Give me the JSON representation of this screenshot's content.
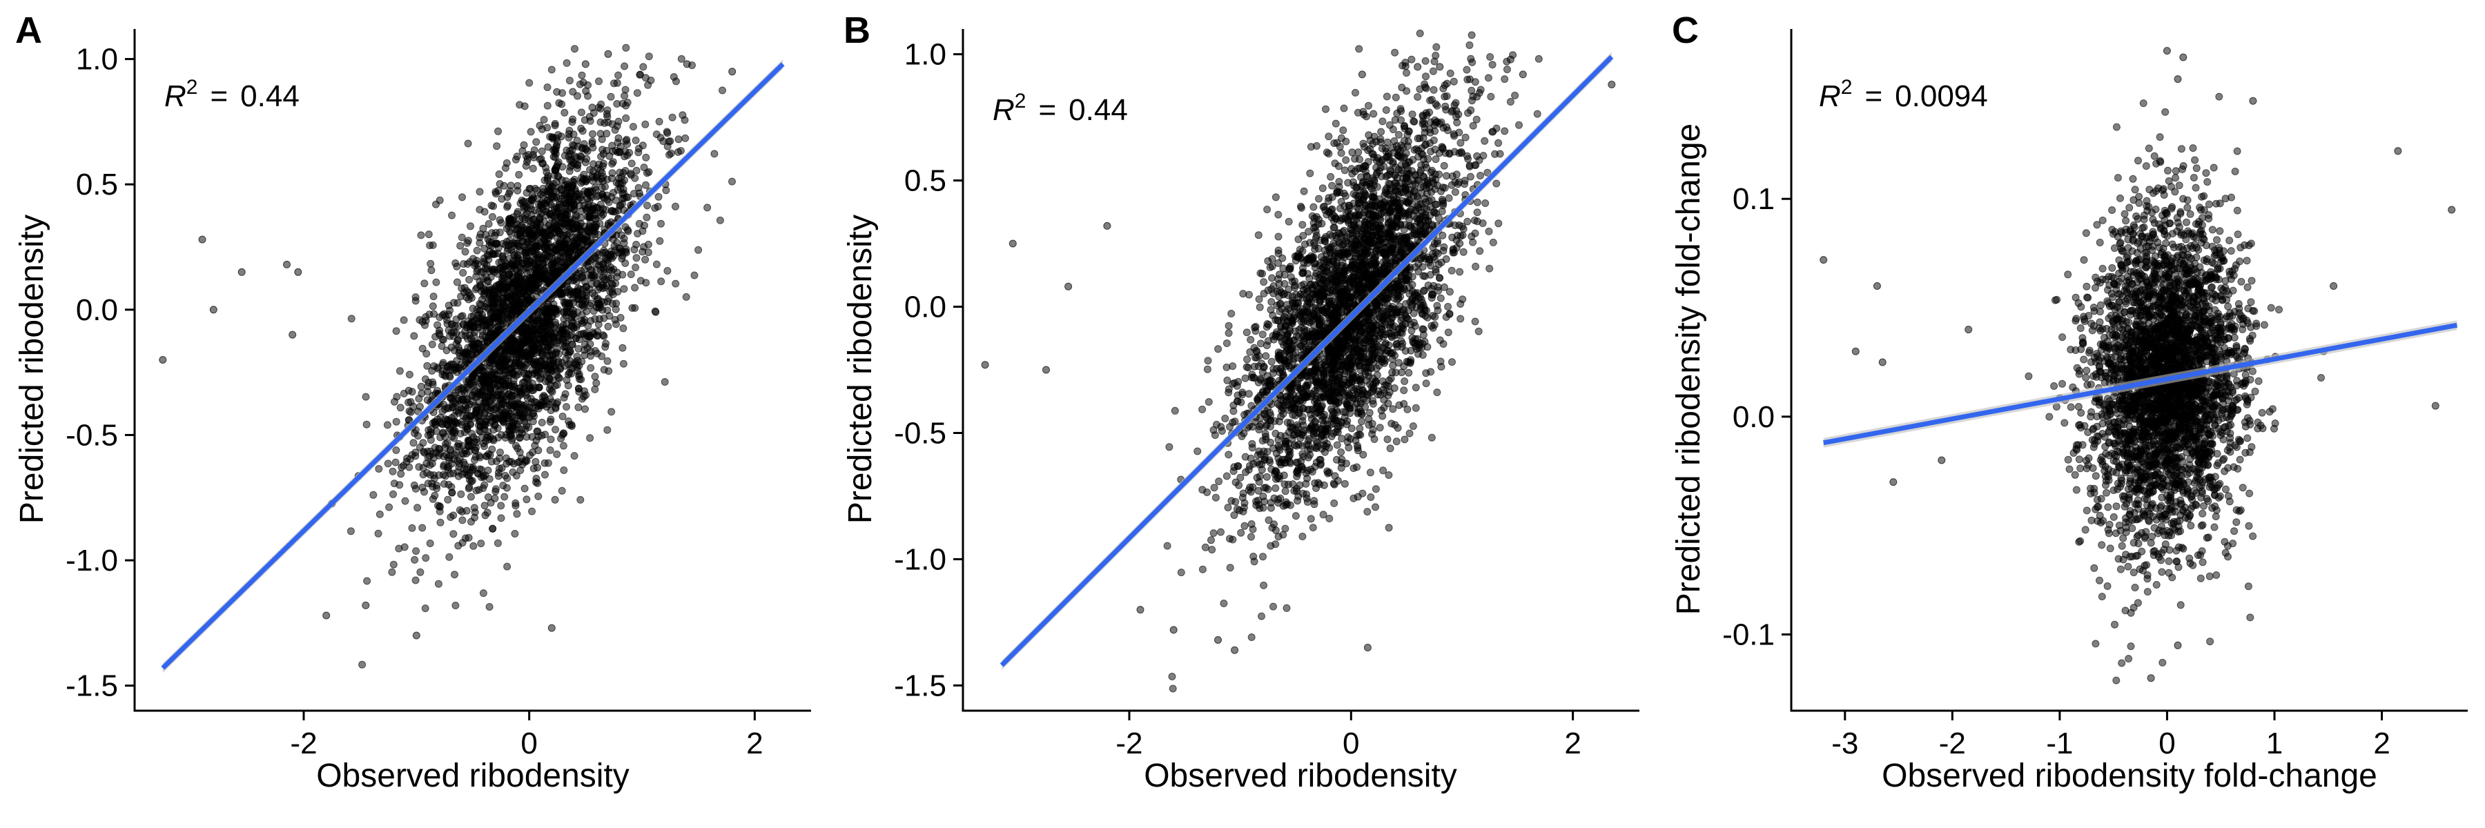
{
  "chart_data": [
    {
      "type": "scatter",
      "panel_label": "A",
      "xlabel": "Observed ribodensity",
      "ylabel": "Predicted ribodensity",
      "annotation": {
        "r2_prefix": "R",
        "r2_exp": "2",
        "r2_eq": "=",
        "r2_value": "0.44"
      },
      "xlim": [
        -3.5,
        2.5
      ],
      "ylim": [
        -1.6,
        1.12
      ],
      "xticks": [
        -2,
        0,
        2
      ],
      "xtick_labels": [
        "-2",
        "0",
        "2"
      ],
      "yticks": [
        -1.5,
        -1.0,
        -0.5,
        0.0,
        0.5,
        1.0
      ],
      "ytick_labels": [
        "-1.5",
        "-1.0",
        "-0.5",
        "0.0",
        "0.5",
        "1.0"
      ],
      "cloud": {
        "center": [
          0,
          0
        ],
        "sd": [
          0.5,
          0.38
        ],
        "rho": 0.66
      },
      "points": [
        [
          -3.25,
          -0.2
        ],
        [
          -2.9,
          0.28
        ],
        [
          -2.8,
          0.0
        ],
        [
          -2.55,
          0.15
        ],
        [
          -2.15,
          0.18
        ],
        [
          -2.1,
          -0.1
        ],
        [
          -2.05,
          0.15
        ],
        [
          -1.8,
          -1.22
        ],
        [
          -1.45,
          -1.18
        ],
        [
          -1.0,
          -1.3
        ],
        [
          0.2,
          -1.27
        ],
        [
          0.7,
          1.02
        ],
        [
          0.5,
          0.98
        ],
        [
          1.4,
          0.98
        ],
        [
          1.8,
          0.95
        ]
      ],
      "fit": {
        "x": [
          -3.25,
          2.25
        ],
        "y": [
          -1.43,
          0.98
        ]
      },
      "grid": false,
      "legend": "none",
      "colors": {
        "points": "#000000",
        "fit": "#3366ee",
        "band": "#bdbdbd"
      }
    },
    {
      "type": "scatter",
      "panel_label": "B",
      "xlabel": "Observed ribodensity",
      "ylabel": "Predicted ribodensity",
      "annotation": {
        "r2_prefix": "R",
        "r2_exp": "2",
        "r2_eq": "=",
        "r2_value": "0.44"
      },
      "xlim": [
        -3.5,
        2.6
      ],
      "ylim": [
        -1.6,
        1.1
      ],
      "xticks": [
        -2,
        0,
        2
      ],
      "xtick_labels": [
        "-2",
        "0",
        "2"
      ],
      "yticks": [
        -1.5,
        -1.0,
        -0.5,
        0.0,
        0.5,
        1.0
      ],
      "ytick_labels": [
        "-1.5",
        "-1.0",
        "-0.5",
        "0.0",
        "0.5",
        "1.0"
      ],
      "cloud": {
        "center": [
          0,
          0
        ],
        "sd": [
          0.5,
          0.38
        ],
        "rho": 0.66
      },
      "points": [
        [
          -3.3,
          -0.23
        ],
        [
          -3.05,
          0.25
        ],
        [
          -2.75,
          -0.25
        ],
        [
          -2.55,
          0.08
        ],
        [
          -2.2,
          0.32
        ],
        [
          -1.9,
          -1.2
        ],
        [
          -1.6,
          -1.28
        ],
        [
          -1.2,
          -1.32
        ],
        [
          -1.05,
          -1.36
        ],
        [
          0.15,
          -1.35
        ],
        [
          0.1,
          0.92
        ],
        [
          0.6,
          0.95
        ],
        [
          0.8,
          0.95
        ],
        [
          1.55,
          0.92
        ],
        [
          2.35,
          0.88
        ]
      ],
      "fit": {
        "x": [
          -3.15,
          2.35
        ],
        "y": [
          -1.42,
          0.99
        ]
      },
      "grid": false,
      "legend": "none",
      "colors": {
        "points": "#000000",
        "fit": "#3366ee",
        "band": "#bdbdbd"
      }
    },
    {
      "type": "scatter",
      "panel_label": "C",
      "xlabel": "Observed ribodensity fold-change",
      "ylabel": "Predicted ribodensity fold-change",
      "annotation": {
        "r2_prefix": "R",
        "r2_exp": "2",
        "r2_eq": "=",
        "r2_value": "0.0094"
      },
      "xlim": [
        -3.5,
        2.8
      ],
      "ylim": [
        -0.135,
        0.178
      ],
      "xticks": [
        -3,
        -2,
        -1,
        0,
        1,
        2
      ],
      "xtick_labels": [
        "-3",
        "-2",
        "-1",
        "0",
        "1",
        "2"
      ],
      "yticks": [
        -0.1,
        0.0,
        0.1
      ],
      "ytick_labels": [
        "-0.1",
        "0.0",
        "0.1"
      ],
      "cloud": {
        "center": [
          0,
          0.018
        ],
        "sd": [
          0.35,
          0.038
        ],
        "rho": 0.1
      },
      "points": [
        [
          -3.2,
          0.072
        ],
        [
          -2.9,
          0.03
        ],
        [
          -2.7,
          0.06
        ],
        [
          -2.65,
          0.025
        ],
        [
          -2.55,
          -0.03
        ],
        [
          -2.1,
          -0.02
        ],
        [
          -1.85,
          0.04
        ],
        [
          0.0,
          0.168
        ],
        [
          0.1,
          0.155
        ],
        [
          0.15,
          0.165
        ],
        [
          0.8,
          0.145
        ],
        [
          1.55,
          0.06
        ],
        [
          2.15,
          0.122
        ],
        [
          2.5,
          0.005
        ],
        [
          2.65,
          0.095
        ],
        [
          -0.15,
          -0.12
        ],
        [
          0.1,
          -0.105
        ]
      ],
      "fit": {
        "x": [
          -3.2,
          2.7
        ],
        "y": [
          -0.012,
          0.042
        ]
      },
      "grid": false,
      "legend": "none",
      "colors": {
        "points": "#000000",
        "fit": "#3366ee",
        "band": "#bdbdbd"
      }
    }
  ]
}
